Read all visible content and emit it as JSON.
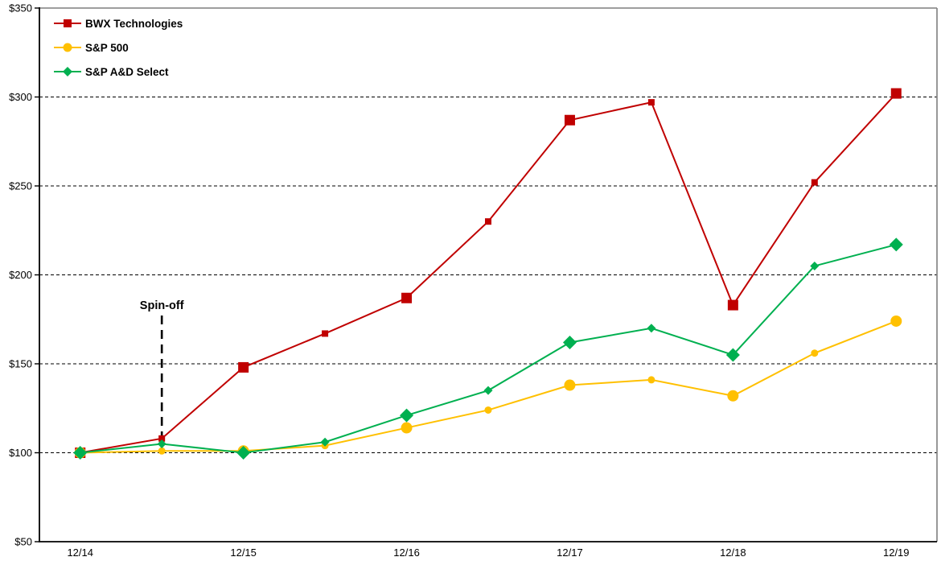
{
  "chart_data": {
    "type": "line",
    "title": "",
    "x": [
      "12/14",
      "6/15",
      "12/15",
      "6/16",
      "12/16",
      "6/17",
      "12/17",
      "6/18",
      "12/18",
      "6/19",
      "12/19"
    ],
    "x_axis_shown_tick_labels": [
      "12/14",
      "12/15",
      "12/16",
      "12/17",
      "12/18",
      "12/19"
    ],
    "y_axis": {
      "tick_labels": [
        "$350",
        "$300",
        "$250",
        "$200",
        "$150",
        "$100",
        "$50"
      ],
      "min": 50,
      "max": 350,
      "step": 50
    },
    "ylim": [
      50,
      350
    ],
    "grid": "horizontal-dashed",
    "legend_position": "top-left-inside",
    "series": [
      {
        "name": "BWX Technologies",
        "color": "#C00000",
        "marker": "square",
        "values": [
          100,
          108,
          148,
          167,
          187,
          230,
          287,
          297,
          183,
          252,
          302
        ]
      },
      {
        "name": "S&P 500",
        "color": "#FFC000",
        "marker": "circle",
        "values": [
          100,
          101,
          101,
          104,
          114,
          124,
          138,
          141,
          132,
          156,
          174
        ]
      },
      {
        "name": "S&P A&D Select",
        "color": "#00B050",
        "marker": "diamond",
        "values": [
          100,
          105,
          100,
          106,
          121,
          135,
          162,
          170,
          155,
          205,
          217
        ]
      }
    ],
    "annotation": {
      "label": "Spin-off",
      "at_x_label": "6/15"
    }
  }
}
